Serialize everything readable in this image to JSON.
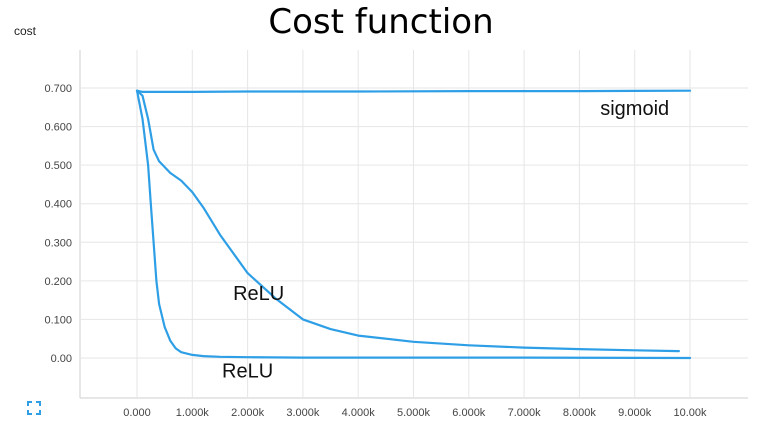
{
  "title": "Cost function",
  "panel_label": "cost",
  "icons": {
    "expand": "expand-icon"
  },
  "colors": {
    "line": "#2e9fe6",
    "grid": "#e6e6e6",
    "axis": "#cfcfcf",
    "text": "#444444"
  },
  "chart_data": {
    "type": "line",
    "title": "Cost function",
    "xlabel": "",
    "ylabel": "cost",
    "xlim": [
      0,
      10000
    ],
    "ylim": [
      0,
      0.7
    ],
    "grid": true,
    "x_ticks": [
      "0.000",
      "1.000k",
      "2.000k",
      "3.000k",
      "4.000k",
      "5.000k",
      "6.000k",
      "7.000k",
      "8.000k",
      "9.000k",
      "10.00k"
    ],
    "y_ticks": [
      "0.00",
      "0.100",
      "0.200",
      "0.300",
      "0.400",
      "0.500",
      "0.600",
      "0.700"
    ],
    "series": [
      {
        "name": "sigmoid",
        "x": [
          0,
          100,
          500,
          1000,
          2000,
          4000,
          6000,
          8000,
          10000
        ],
        "y": [
          0.693,
          0.69,
          0.69,
          0.69,
          0.691,
          0.691,
          0.692,
          0.692,
          0.693
        ]
      },
      {
        "name": "ReLU",
        "x": [
          0,
          100,
          200,
          300,
          400,
          600,
          800,
          1000,
          1200,
          1500,
          1800,
          2000,
          2500,
          3000,
          3500,
          4000,
          5000,
          6000,
          7000,
          8000,
          9000,
          9800
        ],
        "y": [
          0.693,
          0.68,
          0.62,
          0.54,
          0.51,
          0.48,
          0.46,
          0.43,
          0.39,
          0.32,
          0.26,
          0.22,
          0.155,
          0.1,
          0.075,
          0.058,
          0.042,
          0.033,
          0.027,
          0.023,
          0.02,
          0.018
        ]
      },
      {
        "name": "ReLU",
        "x": [
          0,
          100,
          200,
          250,
          300,
          350,
          400,
          500,
          600,
          700,
          800,
          1000,
          1200,
          1500,
          2000,
          3000,
          5000,
          7000,
          10000
        ],
        "y": [
          0.693,
          0.62,
          0.5,
          0.4,
          0.3,
          0.2,
          0.14,
          0.08,
          0.045,
          0.025,
          0.015,
          0.008,
          0.005,
          0.003,
          0.002,
          0.001,
          0.001,
          0.001,
          0.0
        ]
      }
    ],
    "annotations": [
      {
        "text": "sigmoid",
        "x": 9000,
        "y": 0.63
      },
      {
        "text": "ReLU",
        "x": 2200,
        "y": 0.15
      },
      {
        "text": "ReLU",
        "x": 2000,
        "y": -0.05
      }
    ]
  }
}
